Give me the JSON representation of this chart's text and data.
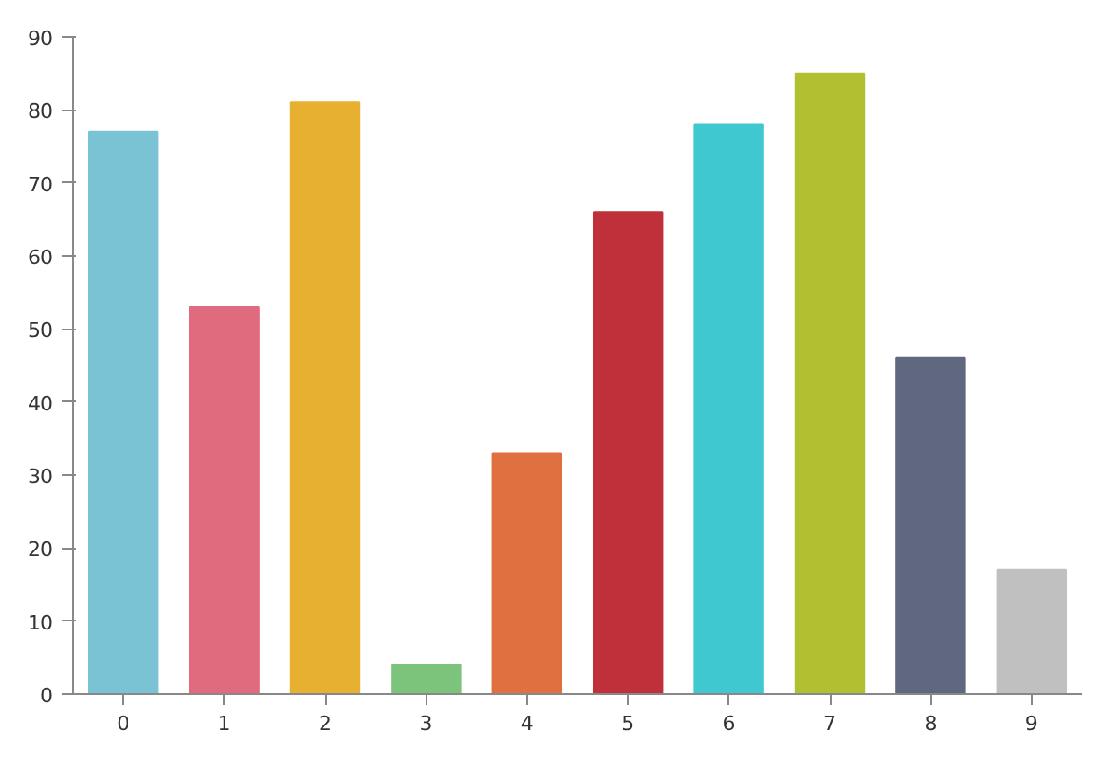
{
  "chart_data": {
    "type": "bar",
    "categories": [
      "0",
      "1",
      "2",
      "3",
      "4",
      "5",
      "6",
      "7",
      "8",
      "9"
    ],
    "values": [
      77,
      53,
      81,
      4,
      33,
      66,
      78,
      85,
      46,
      17
    ],
    "colors": [
      "#7ac3d4",
      "#e06a7e",
      "#e8b030",
      "#7cc47c",
      "#e07040",
      "#c0303a",
      "#40c8d0",
      "#b0c030",
      "#606880",
      "#c0c0c0"
    ],
    "ylim": [
      0,
      90
    ],
    "yticks": [
      0,
      10,
      20,
      30,
      40,
      50,
      60,
      70,
      80,
      90
    ],
    "grid": false
  }
}
